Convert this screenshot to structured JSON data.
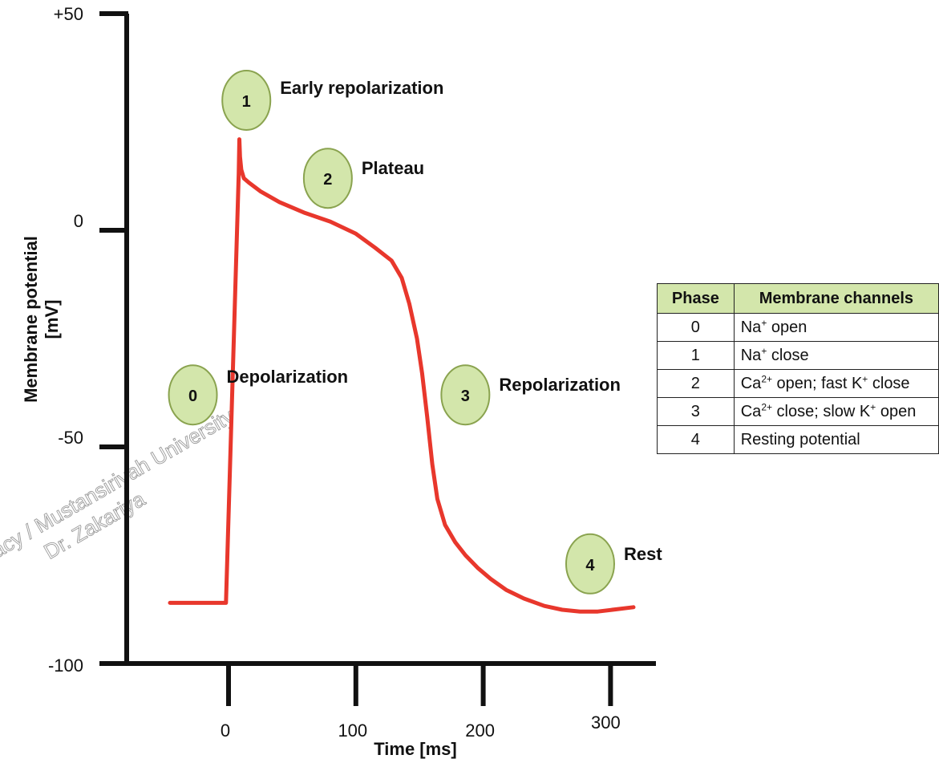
{
  "chart_data": {
    "type": "line",
    "title": "",
    "xlabel": "Time [ms]",
    "ylabel": "Membrane potential [mV]",
    "xlim": [
      -46,
      338
    ],
    "ylim": [
      -100,
      50
    ],
    "x_ticks": [
      "0",
      "100",
      "200",
      "300"
    ],
    "y_ticks": [
      "+50",
      "0",
      "-50",
      "-100"
    ],
    "series": [
      {
        "color": "#e8372c",
        "x": [
          -46,
          -2,
          8,
          8.5,
          9,
          10,
          12,
          16,
          25,
          40,
          60,
          80,
          100,
          115,
          128,
          136,
          142,
          148,
          152,
          156,
          160,
          164,
          170,
          178,
          186,
          196,
          206,
          218,
          232,
          248,
          262,
          276,
          290,
          304,
          318
        ],
        "y": [
          -86,
          -86,
          13,
          21,
          17,
          14,
          12,
          11,
          9,
          6.5,
          4,
          2,
          -0.8,
          -4,
          -7,
          -11,
          -17,
          -25,
          -33,
          -43,
          -54,
          -62,
          -68,
          -72,
          -75,
          -78,
          -80.5,
          -83,
          -85,
          -86.7,
          -87.6,
          -88,
          -88,
          -87.5,
          -87
        ]
      }
    ],
    "phases": [
      {
        "number": "0",
        "label": "Depolarization",
        "x": -28,
        "y": -38
      },
      {
        "number": "1",
        "label": "Early repolarization",
        "x": 14,
        "y": 30
      },
      {
        "number": "2",
        "label": "Plateau",
        "x": 78,
        "y": 12
      },
      {
        "number": "3",
        "label": "Repolarization",
        "x": 186,
        "y": -38
      },
      {
        "number": "4",
        "label": "Rest",
        "x": 284,
        "y": -77
      }
    ],
    "grid": false,
    "legend": "none"
  },
  "watermark": {
    "line1": "acy / Mustansiriyah University",
    "line2": "Dr. Zakariya"
  },
  "colors": {
    "curve": "#e8372c",
    "phase_fill": "#d3e6ab",
    "phase_stroke": "#8aa34f",
    "axis": "#111111",
    "table_header_bg": "#d3e6ab"
  },
  "table": {
    "headers": [
      "Phase",
      "Membrane channels"
    ],
    "rows": [
      {
        "phase": "0",
        "p1": "Na",
        "s1": "+",
        "p2": " open",
        "s2": "",
        "p3": "",
        "s3": "",
        "p4": ""
      },
      {
        "phase": "1",
        "p1": "Na",
        "s1": "+",
        "p2": " close",
        "s2": "",
        "p3": "",
        "s3": "",
        "p4": ""
      },
      {
        "phase": "2",
        "p1": "Ca",
        "s1": "2+",
        "p2": " open; fast K",
        "s2": "+",
        "p3": " close",
        "s3": "",
        "p4": ""
      },
      {
        "phase": "3",
        "p1": "Ca",
        "s1": "2+",
        "p2": " close; slow K",
        "s2": "+",
        "p3": " open",
        "s3": "",
        "p4": ""
      },
      {
        "phase": "4",
        "p1": "Resting potential",
        "s1": "",
        "p2": "",
        "s2": "",
        "p3": "",
        "s3": "",
        "p4": ""
      }
    ]
  }
}
